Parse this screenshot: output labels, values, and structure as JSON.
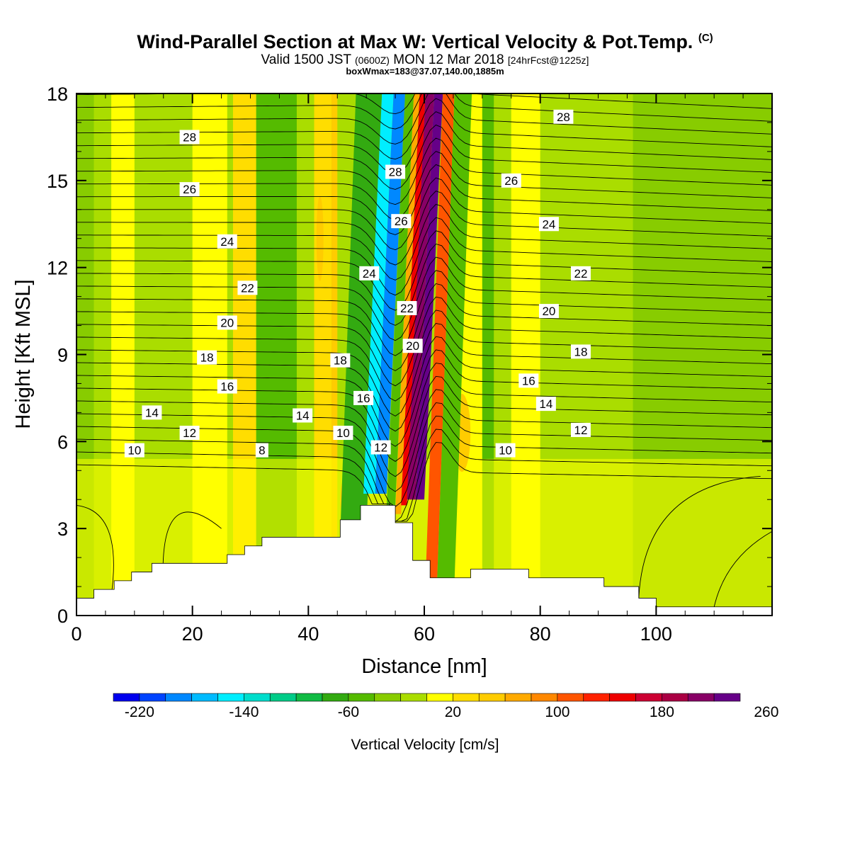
{
  "title": {
    "main": "Wind-Parallel Section at Max W: Vertical Velocity & Pot.Temp.",
    "tag": "(C)",
    "valid_prefix": "Valid 1500 JST",
    "valid_utc": "(0600Z)",
    "valid_date": "MON 12 Mar 2018",
    "forecast": "[24hrFcst@1225z]",
    "box": "boxWmax=183@37.07,140.00,1885m"
  },
  "chart_data": {
    "type": "heatmap",
    "xlabel": "Distance [nm]",
    "ylabel": "Height [Kft MSL]",
    "xlim": [
      0,
      120
    ],
    "ylim": [
      0,
      18
    ],
    "x_ticks": [
      0,
      20,
      40,
      60,
      80,
      100
    ],
    "y_ticks": [
      0,
      3,
      6,
      9,
      12,
      15,
      18
    ],
    "terrain_steps": [
      [
        0,
        0.6
      ],
      [
        3,
        0.9
      ],
      [
        6.5,
        1.2
      ],
      [
        9.5,
        1.5
      ],
      [
        13,
        1.8
      ],
      [
        26,
        2.1
      ],
      [
        29,
        2.4
      ],
      [
        32,
        2.7
      ],
      [
        45.5,
        3.3
      ],
      [
        49,
        3.8
      ],
      [
        55,
        3.2
      ],
      [
        58,
        1.9
      ],
      [
        61,
        1.3
      ],
      [
        68,
        1.6
      ],
      [
        78,
        1.3
      ],
      [
        91,
        1.0
      ],
      [
        97,
        0.6
      ],
      [
        100,
        0.3
      ],
      [
        120,
        0.3
      ]
    ],
    "velocity_field": [
      {
        "x": [
          45,
          49.5
        ],
        "ymin": 0,
        "value": -80
      },
      {
        "x": [
          49.5,
          51.5
        ],
        "ymin": 4.2,
        "value": -160
      },
      {
        "x": [
          51.5,
          53.5
        ],
        "ymin": 4.2,
        "value": -200
      },
      {
        "x": [
          53.5,
          55
        ],
        "ymin": 3.8,
        "value": -60
      },
      {
        "x": [
          55,
          56
        ],
        "ymin": 3.5,
        "value": 60
      },
      {
        "x": [
          56,
          57
        ],
        "ymin": 3.8,
        "value": 140
      },
      {
        "x": [
          57,
          58.5
        ],
        "ymin": 4.0,
        "value": 200
      },
      {
        "x": [
          58.5,
          60
        ],
        "ymin": 4.0,
        "value": 260
      },
      {
        "x": [
          60,
          62
        ],
        "ymin": 0,
        "value": 100
      },
      {
        "x": [
          62,
          65
        ],
        "ymin": 0,
        "value": -60
      }
    ],
    "theta_contours": [
      {
        "label": "8",
        "x": 32,
        "y": 5.7
      },
      {
        "label": "10",
        "x": 10,
        "y": 5.7
      },
      {
        "label": "10",
        "x": 46,
        "y": 6.3
      },
      {
        "label": "10",
        "x": 74,
        "y": 5.7
      },
      {
        "label": "12",
        "x": 19.5,
        "y": 6.3
      },
      {
        "label": "12",
        "x": 52.5,
        "y": 5.8
      },
      {
        "label": "12",
        "x": 87,
        "y": 6.4
      },
      {
        "label": "14",
        "x": 13,
        "y": 7.0
      },
      {
        "label": "14",
        "x": 39,
        "y": 6.9
      },
      {
        "label": "14",
        "x": 81,
        "y": 7.3
      },
      {
        "label": "16",
        "x": 26,
        "y": 7.9
      },
      {
        "label": "16",
        "x": 49.5,
        "y": 7.5
      },
      {
        "label": "16",
        "x": 78,
        "y": 8.1
      },
      {
        "label": "18",
        "x": 22.5,
        "y": 8.9
      },
      {
        "label": "18",
        "x": 45.5,
        "y": 8.8
      },
      {
        "label": "18",
        "x": 87,
        "y": 9.1
      },
      {
        "label": "20",
        "x": 26,
        "y": 10.1
      },
      {
        "label": "20",
        "x": 58,
        "y": 9.3
      },
      {
        "label": "20",
        "x": 81.5,
        "y": 10.5
      },
      {
        "label": "22",
        "x": 29.5,
        "y": 11.3
      },
      {
        "label": "22",
        "x": 57,
        "y": 10.6
      },
      {
        "label": "22",
        "x": 87,
        "y": 11.8
      },
      {
        "label": "24",
        "x": 26,
        "y": 12.9
      },
      {
        "label": "24",
        "x": 50.5,
        "y": 11.8
      },
      {
        "label": "24",
        "x": 81.5,
        "y": 13.5
      },
      {
        "label": "26",
        "x": 19.5,
        "y": 14.7
      },
      {
        "label": "26",
        "x": 56,
        "y": 13.6
      },
      {
        "label": "26",
        "x": 75,
        "y": 15.0
      },
      {
        "label": "28",
        "x": 19.5,
        "y": 16.5
      },
      {
        "label": "28",
        "x": 55,
        "y": 15.3
      },
      {
        "label": "28",
        "x": 84,
        "y": 17.2
      }
    ],
    "colorbar": {
      "title": "Vertical Velocity [cm/s]",
      "tick_labels": [
        "-220",
        "-140",
        "-60",
        "20",
        "100",
        "180",
        "260"
      ],
      "colors": [
        "#0000ee",
        "#0044ff",
        "#0088ff",
        "#00bbff",
        "#00eeff",
        "#00ddcc",
        "#00cc88",
        "#11bb44",
        "#33aa11",
        "#55bb00",
        "#88cc00",
        "#aadd00",
        "#ffff00",
        "#ffdd00",
        "#ffcc00",
        "#ffaa00",
        "#ff8800",
        "#ff5500",
        "#ff2200",
        "#ee0000",
        "#cc0033",
        "#aa0044",
        "#880066",
        "#660088"
      ]
    },
    "grid": false
  }
}
